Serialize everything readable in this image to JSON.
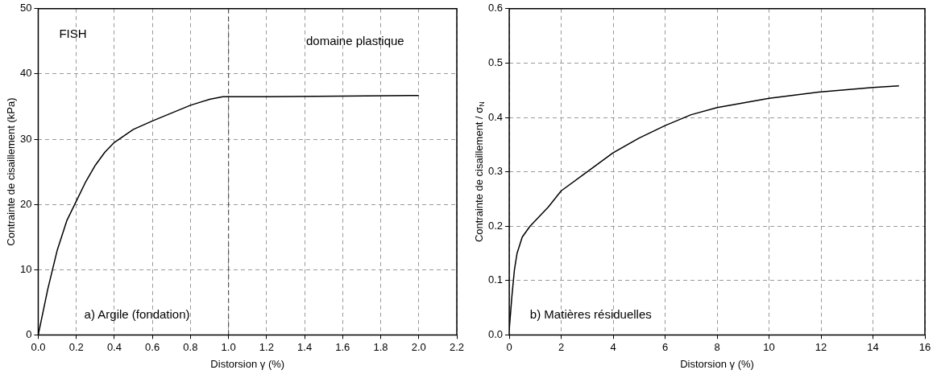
{
  "chart_data": [
    {
      "type": "line",
      "xlabel": "Distorsion γ (%)",
      "ylabel": "Contrainte de cisaillement (kPa)",
      "annotations": [
        "FISH",
        "domaine plastique",
        "a) Argile (fondation)"
      ],
      "x": [
        0,
        0.05,
        0.1,
        0.15,
        0.2,
        0.25,
        0.3,
        0.35,
        0.4,
        0.5,
        0.6,
        0.7,
        0.8,
        0.9,
        0.97,
        1.2,
        1.6,
        2.0
      ],
      "series": [
        {
          "color": "#000000",
          "values": [
            0,
            7,
            13,
            17.5,
            20.5,
            23.5,
            26,
            28,
            29.5,
            31.5,
            32.8,
            34,
            35.2,
            36.1,
            36.5,
            36.5,
            36.6,
            36.7
          ]
        }
      ],
      "xlim": [
        0,
        2.2
      ],
      "xticks": [
        {
          "value": 0,
          "label": "0.0"
        },
        {
          "value": 0.2,
          "label": "0.2"
        },
        {
          "value": 0.4,
          "label": "0.4"
        },
        {
          "value": 0.6,
          "label": "0.6"
        },
        {
          "value": 0.8,
          "label": "0.8"
        },
        {
          "value": 1,
          "label": "1.0"
        },
        {
          "value": 1.2,
          "label": "1.2"
        },
        {
          "value": 1.4,
          "label": "1.4"
        },
        {
          "value": 1.6,
          "label": "1.6"
        },
        {
          "value": 1.8,
          "label": "1.8"
        },
        {
          "value": 2,
          "label": "2.0"
        },
        {
          "value": 2.2,
          "label": "2.2"
        }
      ],
      "ylim": [
        0,
        50
      ],
      "yticks": [
        0,
        10,
        20,
        30,
        40,
        50
      ],
      "ref_lines": [
        {
          "axis": "x",
          "value": 1.0,
          "color": "#555555",
          "line_style": "dashed"
        }
      ],
      "grid": true,
      "legend": false,
      "marker": "none",
      "line_style": "solid"
    },
    {
      "type": "line",
      "xlabel": "Distorsion γ (%)",
      "ylabel": "Contrainte de cisaillement / σ$_{N}$",
      "annotations": [
        "b) Matières résiduelles"
      ],
      "x": [
        0,
        0.1,
        0.2,
        0.3,
        0.5,
        0.8,
        1,
        1.5,
        2,
        3,
        4,
        5,
        6,
        7,
        8,
        10,
        12,
        14,
        15
      ],
      "series": [
        {
          "color": "#000000",
          "values": [
            0.01,
            0.07,
            0.12,
            0.15,
            0.18,
            0.2,
            0.21,
            0.235,
            0.265,
            0.3,
            0.335,
            0.362,
            0.385,
            0.405,
            0.418,
            0.435,
            0.447,
            0.455,
            0.458
          ]
        }
      ],
      "xlim": [
        0,
        16
      ],
      "xticks": [
        0,
        2,
        4,
        6,
        8,
        10,
        12,
        14,
        16
      ],
      "ylim": [
        0,
        0.6
      ],
      "yticks": [
        {
          "value": 0,
          "label": "0.0"
        },
        {
          "value": 0.1,
          "label": "0.1"
        },
        {
          "value": 0.2,
          "label": "0.2"
        },
        {
          "value": 0.3,
          "label": "0.3"
        },
        {
          "value": 0.4,
          "label": "0.4"
        },
        {
          "value": 0.5,
          "label": "0.5"
        },
        {
          "value": 0.6,
          "label": "0.6"
        }
      ],
      "grid": true,
      "legend": false,
      "marker": "none",
      "line_style": "solid"
    }
  ]
}
